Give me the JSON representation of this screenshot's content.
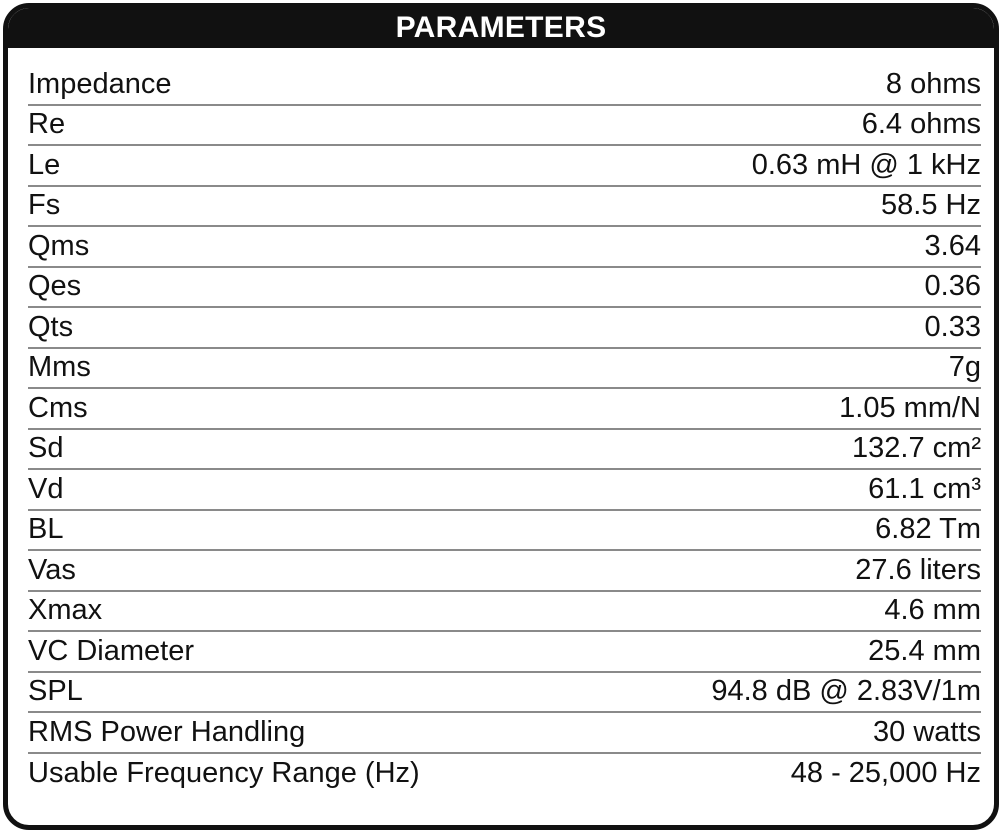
{
  "header": {
    "title": "PARAMETERS"
  },
  "rows": [
    {
      "label": "Impedance",
      "value": "8 ohms"
    },
    {
      "label": "Re",
      "value": "6.4 ohms"
    },
    {
      "label": "Le",
      "value": "0.63 mH @ 1 kHz"
    },
    {
      "label": "Fs",
      "value": "58.5 Hz"
    },
    {
      "label": "Qms",
      "value": "3.64"
    },
    {
      "label": "Qes",
      "value": "0.36"
    },
    {
      "label": "Qts",
      "value": "0.33"
    },
    {
      "label": "Mms",
      "value": "7g"
    },
    {
      "label": "Cms",
      "value": "1.05 mm/N"
    },
    {
      "label": "Sd",
      "value": "132.7 cm²"
    },
    {
      "label": "Vd",
      "value": "61.1 cm³"
    },
    {
      "label": "BL",
      "value": "6.82 Tm"
    },
    {
      "label": "Vas",
      "value": "27.6 liters"
    },
    {
      "label": "Xmax",
      "value": "4.6 mm"
    },
    {
      "label": "VC Diameter",
      "value": "25.4 mm"
    },
    {
      "label": "SPL",
      "value": "94.8 dB @ 2.83V/1m"
    },
    {
      "label": "RMS Power Handling",
      "value": "30 watts"
    },
    {
      "label": "Usable Frequency Range (Hz)",
      "value": "48 - 25,000 Hz"
    }
  ]
}
